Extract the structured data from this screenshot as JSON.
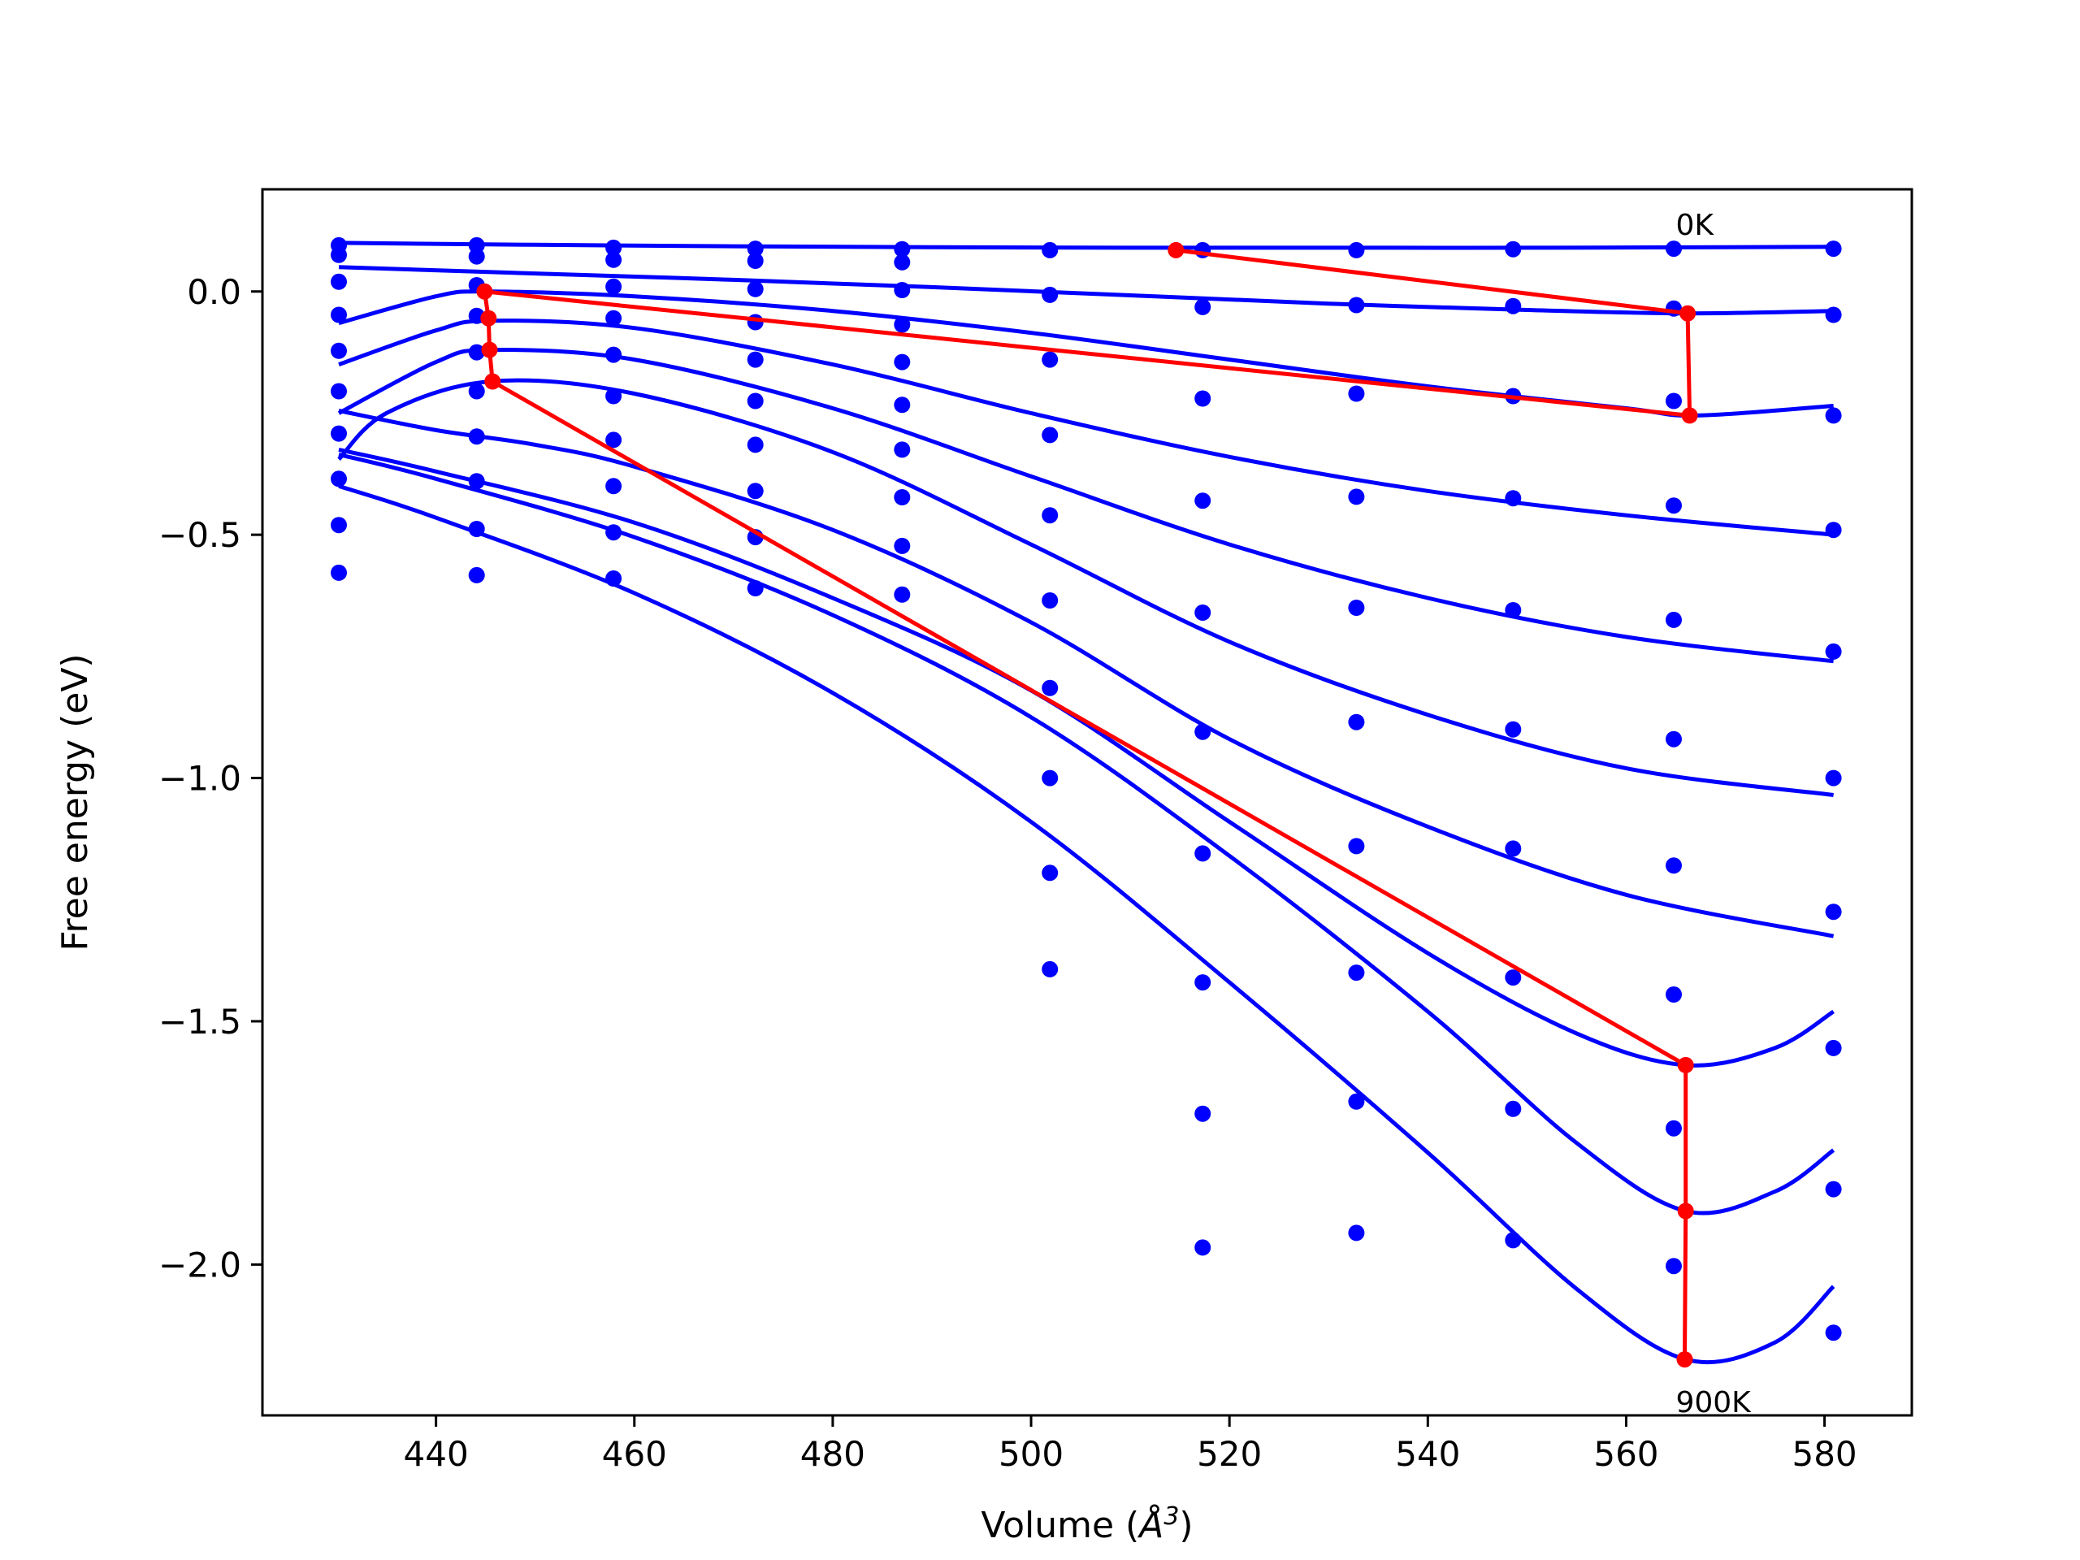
{
  "chart_data": {
    "type": "scatter",
    "title": "",
    "xlabel": "Volume (",
    "xlabel_unit": "Å",
    "xlabel_exp": "3",
    "xlabel_close": ")",
    "ylabel": "Free energy (eV)",
    "xlim": [
      422.5,
      588.8
    ],
    "ylim": [
      -2.31,
      0.21
    ],
    "xticks": [
      440,
      460,
      480,
      500,
      520,
      540,
      560,
      580
    ],
    "xtick_labels": [
      "440",
      "460",
      "480",
      "500",
      "520",
      "540",
      "560",
      "580"
    ],
    "yticks": [
      0.0,
      -0.5,
      -1.0,
      -1.5,
      -2.0
    ],
    "ytick_labels": [
      "0.0",
      "−0.5",
      "−1.0",
      "−1.5",
      "−2.0"
    ],
    "grid": false,
    "colors": {
      "points": "#0000ff",
      "fit": "#0000ff",
      "min_path": "#ff0000"
    },
    "volumes": [
      430.2,
      444.1,
      457.9,
      472.2,
      487.0,
      501.9,
      517.3,
      532.8,
      548.6,
      564.8,
      580.9
    ],
    "temperatures": [
      {
        "energies": [
          0.095,
          0.095,
          0.09,
          0.088,
          0.087,
          0.085,
          0.085,
          0.085,
          0.087,
          0.088,
          0.088
        ]
      },
      {
        "energies": [
          0.075,
          0.072,
          0.065,
          0.063,
          0.06,
          -0.007,
          -0.032,
          -0.028,
          -0.03,
          -0.035,
          -0.048
        ]
      },
      {
        "energies": [
          0.02,
          0.013,
          0.01,
          0.005,
          0.003,
          -0.14,
          -0.22,
          -0.21,
          -0.215,
          -0.225,
          -0.255
        ]
      },
      {
        "energies": [
          -0.048,
          -0.05,
          -0.055,
          -0.063,
          -0.068,
          -0.295,
          -0.43,
          -0.422,
          -0.425,
          -0.44,
          -0.49
        ]
      },
      {
        "energies": [
          -0.122,
          -0.125,
          -0.13,
          -0.14,
          -0.145,
          -0.46,
          -0.66,
          -0.65,
          -0.655,
          -0.675,
          -0.74
        ]
      },
      {
        "energies": [
          -0.205,
          -0.205,
          -0.215,
          -0.225,
          -0.233,
          -0.635,
          -0.905,
          -0.885,
          -0.9,
          -0.92,
          -1.0
        ]
      },
      {
        "energies": [
          -0.292,
          -0.298,
          -0.305,
          -0.315,
          -0.325,
          -0.815,
          -1.155,
          -1.14,
          -1.145,
          -1.18,
          -1.275
        ]
      },
      {
        "energies": [
          -0.385,
          -0.39,
          -0.4,
          -0.41,
          -0.423,
          -1.0,
          -1.42,
          -1.4,
          -1.41,
          -1.445,
          -1.555
        ]
      },
      {
        "energies": [
          -0.48,
          -0.488,
          -0.495,
          -0.505,
          -0.523,
          -1.195,
          -1.69,
          -1.665,
          -1.68,
          -1.72,
          -1.845
        ]
      },
      {
        "energies": [
          -0.578,
          -0.583,
          -0.59,
          -0.61,
          -0.623,
          -1.393,
          -1.965,
          -1.935,
          -1.95,
          -2.003,
          -2.14
        ]
      }
    ],
    "fit_curves": [
      {
        "x": [
          430.2,
          450,
          470,
          490,
          510,
          530,
          550,
          570,
          580.9
        ],
        "y": [
          0.1,
          0.096,
          0.093,
          0.091,
          0.09,
          0.09,
          0.09,
          0.091,
          0.092
        ]
      },
      {
        "x": [
          430.2,
          450,
          470,
          490,
          510,
          530,
          550,
          566,
          580.9
        ],
        "y": [
          0.05,
          0.037,
          0.024,
          0.009,
          -0.008,
          -0.025,
          -0.038,
          -0.045,
          -0.04
        ]
      },
      {
        "x": [
          430.2,
          440,
          445,
          460,
          480,
          500,
          520,
          540,
          560,
          567,
          580.9
        ],
        "y": [
          -0.065,
          -0.01,
          0.0,
          -0.01,
          -0.04,
          -0.085,
          -0.14,
          -0.195,
          -0.24,
          -0.255,
          -0.235
        ]
      },
      {
        "x": [
          430.2,
          440,
          445.5,
          460,
          480,
          500,
          520,
          540,
          560,
          580.9
        ],
        "y": [
          -0.15,
          -0.08,
          -0.06,
          -0.075,
          -0.15,
          -0.25,
          -0.34,
          -0.41,
          -0.46,
          -0.5
        ]
      },
      {
        "x": [
          430.2,
          440,
          445.5,
          460,
          480,
          500,
          520,
          540,
          560,
          580.9
        ],
        "y": [
          -0.25,
          -0.145,
          -0.12,
          -0.14,
          -0.24,
          -0.38,
          -0.52,
          -0.63,
          -0.71,
          -0.76
        ]
      },
      {
        "x": [
          430.2,
          435,
          445.5,
          460,
          480,
          500,
          520,
          540,
          560,
          580.9
        ],
        "y": [
          -0.345,
          -0.25,
          -0.185,
          -0.21,
          -0.33,
          -0.52,
          -0.72,
          -0.87,
          -0.98,
          -1.035
        ]
      },
      {
        "x": [
          430.2,
          440,
          450,
          460,
          480,
          500,
          520,
          540,
          560,
          580.9
        ],
        "y": [
          -0.245,
          -0.285,
          -0.315,
          -0.36,
          -0.49,
          -0.68,
          -0.92,
          -1.1,
          -1.24,
          -1.325
        ]
      },
      {
        "x": [
          430.2,
          440,
          460,
          480,
          500,
          520,
          540,
          555,
          566,
          575,
          580.9
        ],
        "y": [
          -0.325,
          -0.37,
          -0.475,
          -0.63,
          -0.82,
          -1.09,
          -1.36,
          -1.525,
          -1.59,
          -1.555,
          -1.48
        ]
      },
      {
        "x": [
          430.2,
          440,
          460,
          480,
          500,
          520,
          540,
          555,
          566,
          575,
          580.9
        ],
        "y": [
          -0.335,
          -0.385,
          -0.505,
          -0.665,
          -0.875,
          -1.16,
          -1.48,
          -1.75,
          -1.89,
          -1.85,
          -1.765
        ]
      },
      {
        "x": [
          430.2,
          440,
          460,
          480,
          500,
          520,
          540,
          555,
          566,
          575,
          580.9
        ],
        "y": [
          -0.4,
          -0.465,
          -0.62,
          -0.825,
          -1.09,
          -1.42,
          -1.77,
          -2.05,
          -2.195,
          -2.16,
          -2.045
        ]
      }
    ],
    "min_path": {
      "x": [
        514.6,
        566.2,
        566.4,
        444.9,
        445.3,
        445.4,
        445.7,
        566.0,
        566.0,
        565.9
      ],
      "y": [
        0.085,
        -0.045,
        -0.255,
        0.0,
        -0.055,
        -0.12,
        -0.185,
        -1.59,
        -1.89,
        -2.195
      ]
    },
    "annotations": [
      {
        "text": "0K",
        "x": 565.0,
        "y": 0.14
      },
      {
        "text": "900K",
        "x": 565.0,
        "y": -2.28
      }
    ]
  }
}
